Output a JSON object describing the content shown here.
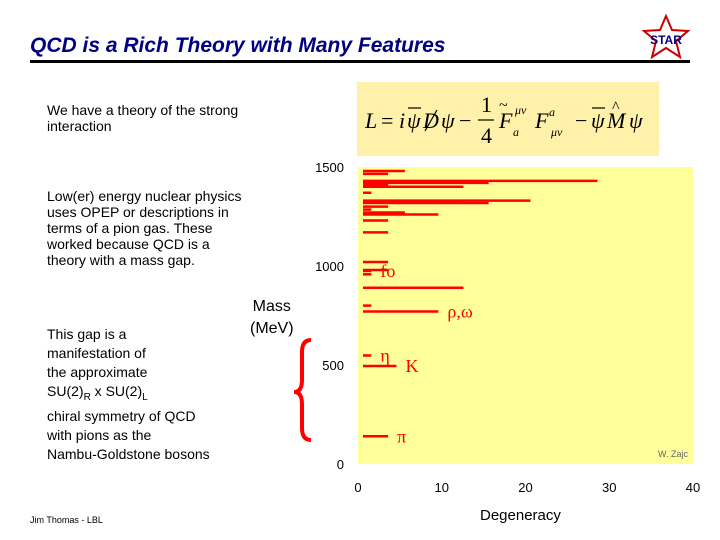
{
  "slide": {
    "title": "QCD is a Rich Theory with Many Features",
    "logo_text": "STAR",
    "footer": "Jim Thomas - LBL"
  },
  "text": {
    "strong_theory": [
      "We have a theory of the strong",
      "interaction"
    ],
    "low_energy": [
      "Low(er) energy nuclear physics",
      "uses OPEP or descriptions in",
      "terms of a pion gas.  These",
      "worked because QCD is a",
      "theory with a mass gap."
    ],
    "gap_line1": "This gap is a",
    "gap_line2": "manifestation of",
    "gap_line3": "the approximate",
    "gap_su1": "SU(2)",
    "gap_sub_r": "R",
    "gap_x": " x SU(2)",
    "gap_sub_l": "L",
    "gap_line5": "chiral symmetry of QCD",
    "gap_line6": "with pions as the",
    "gap_line7": "Nambu-Goldstone bosons"
  },
  "formula": {
    "L": "L",
    "eq": "=",
    "i": "i",
    "psibar": "ψ",
    "D": "D",
    "psi": "ψ",
    "minus": "−",
    "one": "1",
    "four": "4",
    "F": "F",
    "sub_a": "a",
    "sup_mn": "μν",
    "sub_mn": "μν",
    "M": "M",
    "tilde": "~",
    "hat": "^"
  },
  "chart_data": {
    "type": "scatter",
    "title": "",
    "xlabel": "Degeneracy",
    "ylabel_lines": [
      "Mass",
      "(MeV)"
    ],
    "xlim": [
      0,
      40
    ],
    "ylim": [
      0,
      1500
    ],
    "x_ticks": [
      "0",
      "10",
      "20",
      "30",
      "40"
    ],
    "y_ticks": [
      "0",
      "500",
      "1000",
      "1500"
    ],
    "credit": "W. Zajc",
    "background": "#FFFF99",
    "line_color": "#FF0000",
    "mesons": [
      {
        "mass": 140,
        "deg": 3,
        "label": "π"
      },
      {
        "mass": 495,
        "deg": 4,
        "label": "K"
      },
      {
        "mass": 548,
        "deg": 1,
        "label": "η"
      },
      {
        "mass": 770,
        "deg": 9,
        "label": "ρ,ω"
      },
      {
        "mass": 800,
        "deg": 1
      },
      {
        "mass": 890,
        "deg": 12
      },
      {
        "mass": 958,
        "deg": 1
      },
      {
        "mass": 975,
        "deg": 1,
        "label": "fo"
      },
      {
        "mass": 980,
        "deg": 3
      },
      {
        "mass": 1020,
        "deg": 3
      },
      {
        "mass": 1170,
        "deg": 3
      },
      {
        "mass": 1230,
        "deg": 3
      },
      {
        "mass": 1260,
        "deg": 9
      },
      {
        "mass": 1270,
        "deg": 5
      },
      {
        "mass": 1285,
        "deg": 1
      },
      {
        "mass": 1300,
        "deg": 3
      },
      {
        "mass": 1318,
        "deg": 15
      },
      {
        "mass": 1320,
        "deg": 12
      },
      {
        "mass": 1330,
        "deg": 20
      },
      {
        "mass": 1370,
        "deg": 1
      },
      {
        "mass": 1400,
        "deg": 12
      },
      {
        "mass": 1410,
        "deg": 3
      },
      {
        "mass": 1420,
        "deg": 15
      },
      {
        "mass": 1425,
        "deg": 4
      },
      {
        "mass": 1430,
        "deg": 28
      },
      {
        "mass": 1465,
        "deg": 3
      },
      {
        "mass": 1480,
        "deg": 5
      }
    ]
  }
}
